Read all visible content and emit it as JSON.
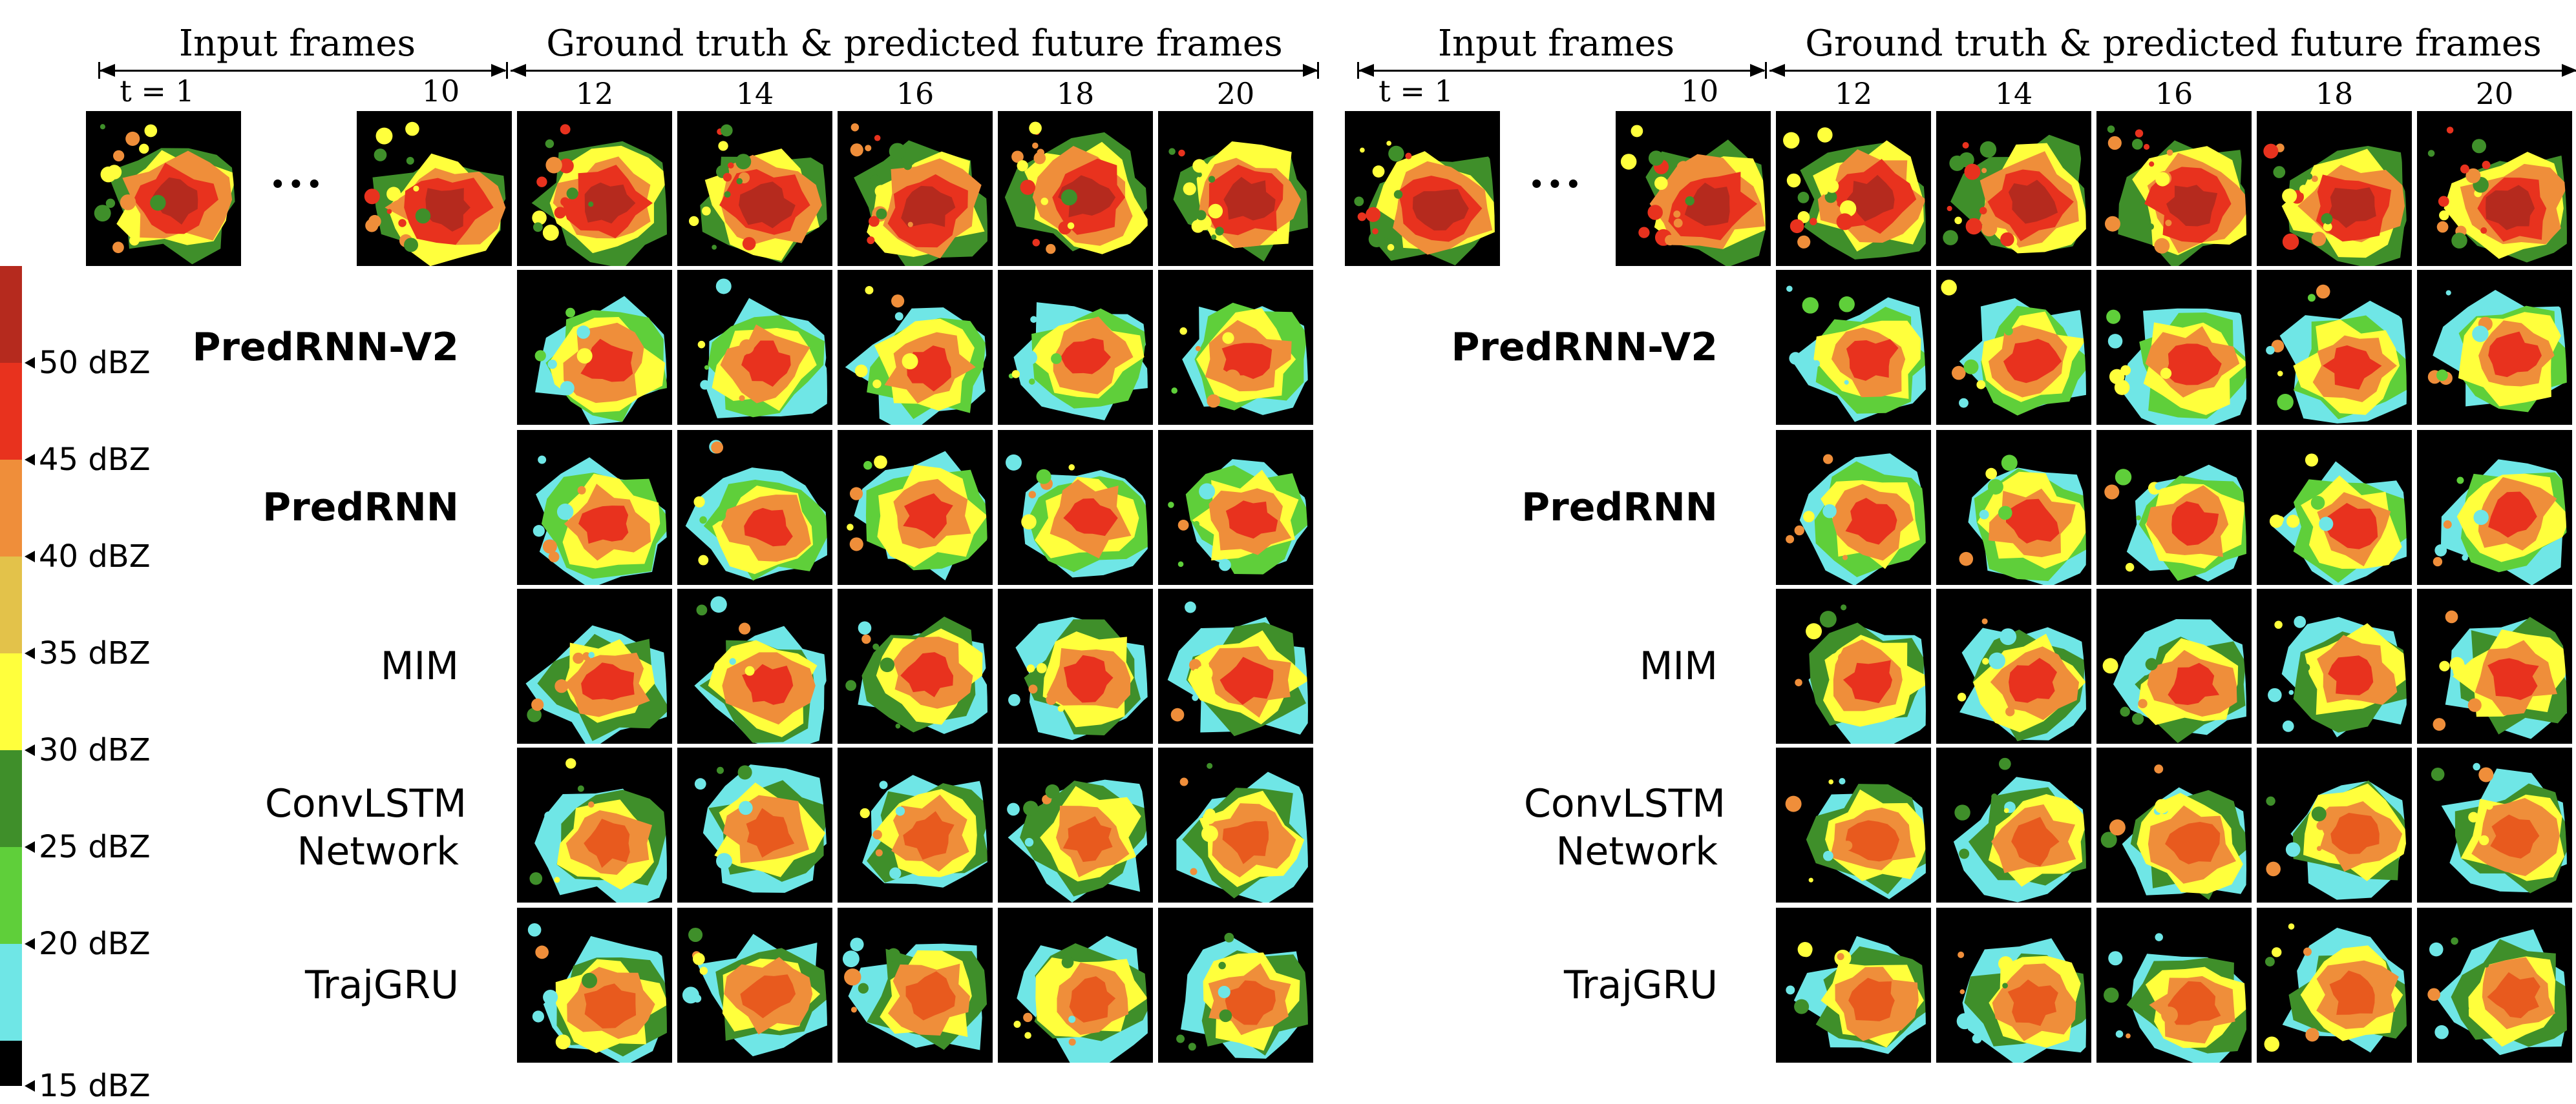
{
  "panels": [
    {
      "input_header": "Input frames",
      "pred_header": "Ground truth & predicted future frames",
      "input_ticks": [
        "t = 1",
        "10"
      ],
      "ellipsis": "···",
      "future_ticks": [
        "12",
        "14",
        "16",
        "18",
        "20"
      ],
      "models": [
        {
          "name": "PredRNN-V2",
          "bold": true
        },
        {
          "name": "PredRNN",
          "bold": true
        },
        {
          "name": "MIM",
          "bold": false
        },
        {
          "name": "ConvLSTM Network",
          "bold": false
        },
        {
          "name": "TrajGRU",
          "bold": false
        }
      ]
    },
    {
      "input_header": "Input frames",
      "pred_header": "Ground truth & predicted future frames",
      "input_ticks": [
        "t = 1",
        "10"
      ],
      "ellipsis": "···",
      "future_ticks": [
        "12",
        "14",
        "16",
        "18",
        "20"
      ],
      "models": [
        {
          "name": "PredRNN-V2",
          "bold": true
        },
        {
          "name": "PredRNN",
          "bold": true
        },
        {
          "name": "MIM",
          "bold": false
        },
        {
          "name": "ConvLSTM Network",
          "bold": false
        },
        {
          "name": "TrajGRU",
          "bold": false
        }
      ]
    }
  ],
  "colorbar": {
    "ticks": [
      "50 dBZ",
      "45 dBZ",
      "40 dBZ",
      "35 dBZ",
      "30 dBZ",
      "25 dBZ",
      "20 dBZ",
      "15 dBZ"
    ],
    "colors_top_to_bottom": [
      "#b52a1e",
      "#e8321e",
      "#ef8e3a",
      "#e3c24a",
      "#ffff3c",
      "#3f8f2a",
      "#5fcf3a",
      "#6fe6e6",
      "#000000"
    ]
  }
}
